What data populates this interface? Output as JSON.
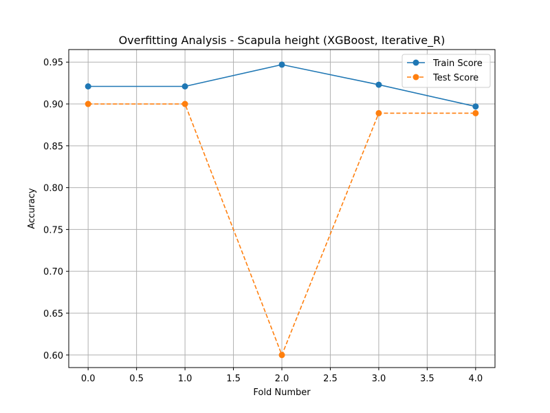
{
  "chart_data": {
    "type": "line",
    "title": "Overfitting Analysis - Scapula height (XGBoost, Iterative_R)",
    "xlabel": "Fold Number",
    "ylabel": "Accuracy",
    "x": [
      0,
      1,
      2,
      3,
      4
    ],
    "xlim": [
      -0.2,
      4.2
    ],
    "ylim": [
      0.585,
      0.965
    ],
    "xticks": [
      0.0,
      0.5,
      1.0,
      1.5,
      2.0,
      2.5,
      3.0,
      3.5,
      4.0
    ],
    "xtick_labels": [
      "0.0",
      "0.5",
      "1.0",
      "1.5",
      "2.0",
      "2.5",
      "3.0",
      "3.5",
      "4.0"
    ],
    "yticks": [
      0.6,
      0.65,
      0.7,
      0.75,
      0.8,
      0.85,
      0.9,
      0.95
    ],
    "ytick_labels": [
      "0.60",
      "0.65",
      "0.70",
      "0.75",
      "0.80",
      "0.85",
      "0.90",
      "0.95"
    ],
    "grid": true,
    "legend_position": "top-right",
    "series": [
      {
        "name": "Train Score",
        "values": [
          0.921,
          0.921,
          0.947,
          0.923,
          0.897
        ],
        "color": "#1f77b4",
        "linestyle": "solid",
        "marker": "circle"
      },
      {
        "name": "Test Score",
        "values": [
          0.9,
          0.9,
          0.6,
          0.889,
          0.889
        ],
        "color": "#ff7f0e",
        "linestyle": "dashed",
        "marker": "circle"
      }
    ]
  }
}
